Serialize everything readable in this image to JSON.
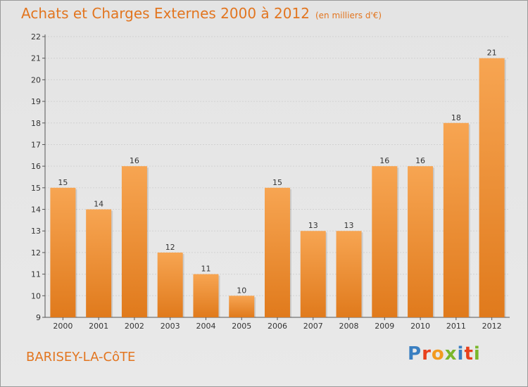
{
  "header": {
    "title": "Achats et Charges Externes 2000 à 2012",
    "unit": "(en milliers d'€)"
  },
  "footer": {
    "commune": "BARISEY-LA-CôTE",
    "logo": "Proxiti"
  },
  "colors": {
    "accent": "#e2751f",
    "bar_light": "#f7a552",
    "bar_dark": "#e07a1c"
  },
  "chart_data": {
    "type": "bar",
    "title": "Achats et Charges Externes 2000 à 2012",
    "subtitle": "(en milliers d'€)",
    "categories": [
      "2000",
      "2001",
      "2002",
      "2003",
      "2004",
      "2005",
      "2006",
      "2007",
      "2008",
      "2009",
      "2010",
      "2011",
      "2012"
    ],
    "values": [
      15,
      14,
      16,
      12,
      11,
      10,
      15,
      13,
      13,
      16,
      16,
      18,
      21
    ],
    "xlabel": "",
    "ylabel": "",
    "ylim": [
      9,
      22
    ],
    "yticks": [
      9,
      10,
      11,
      12,
      13,
      14,
      15,
      16,
      17,
      18,
      19,
      20,
      21,
      22
    ],
    "grid": true,
    "legend": "none"
  }
}
